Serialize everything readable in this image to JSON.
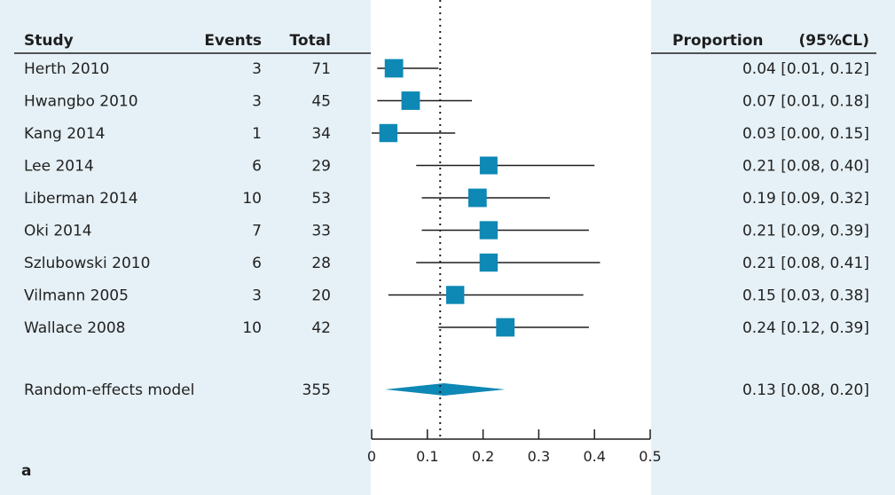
{
  "panel_label": "a",
  "chart_data": {
    "type": "forest",
    "columns": {
      "study": "Study",
      "events": "Events",
      "total": "Total",
      "proportion": "Proportion",
      "ci": "(95%CL)"
    },
    "studies": [
      {
        "study": "Herth 2010",
        "events": "3",
        "total": "71",
        "prop": 0.04,
        "lo": 0.01,
        "hi": 0.12,
        "ci_text": "0.04 [0.01, 0.12]",
        "weight": 0.85
      },
      {
        "study": "Hwangbo 2010",
        "events": "3",
        "total": "45",
        "prop": 0.07,
        "lo": 0.01,
        "hi": 0.18,
        "ci_text": "0.07 [0.01, 0.18]",
        "weight": 0.85
      },
      {
        "study": "Kang 2014",
        "events": "1",
        "total": "34",
        "prop": 0.03,
        "lo": 0.0,
        "hi": 0.15,
        "ci_text": "0.03 [0.00, 0.15]",
        "weight": 0.8
      },
      {
        "study": "Lee 2014",
        "events": "6",
        "total": "29",
        "prop": 0.21,
        "lo": 0.08,
        "hi": 0.4,
        "ci_text": "0.21 [0.08, 0.40]",
        "weight": 0.75
      },
      {
        "study": "Liberman 2014",
        "events": "10",
        "total": "53",
        "prop": 0.19,
        "lo": 0.09,
        "hi": 0.32,
        "ci_text": "0.19 [0.09, 0.32]",
        "weight": 0.85
      },
      {
        "study": "Oki 2014",
        "events": "7",
        "total": "33",
        "prop": 0.21,
        "lo": 0.09,
        "hi": 0.39,
        "ci_text": "0.21 [0.09, 0.39]",
        "weight": 0.8
      },
      {
        "study": "Szlubowski 2010",
        "events": "6",
        "total": "28",
        "prop": 0.21,
        "lo": 0.08,
        "hi": 0.41,
        "ci_text": "0.21 [0.08, 0.41]",
        "weight": 0.8
      },
      {
        "study": "Vilmann 2005",
        "events": "3",
        "total": "20",
        "prop": 0.15,
        "lo": 0.03,
        "hi": 0.38,
        "ci_text": "0.15 [0.03, 0.38]",
        "weight": 0.8
      },
      {
        "study": "Wallace 2008",
        "events": "10",
        "total": "42",
        "prop": 0.24,
        "lo": 0.12,
        "hi": 0.39,
        "ci_text": "0.24 [0.12, 0.39]",
        "weight": 0.85
      }
    ],
    "summary": {
      "label": "Random-effects model",
      "total": "355",
      "prop": 0.13,
      "lo": 0.08,
      "hi": 0.2,
      "ci_text": "0.13 [0.08, 0.20]"
    },
    "reference_line": 0.123,
    "xlim": [
      0,
      0.5
    ],
    "xticks": [
      0,
      0.1,
      0.2,
      0.3,
      0.4,
      0.5
    ],
    "xtick_labels": [
      "0",
      "0.1",
      "0.2",
      "0.3",
      "0.4",
      "0.5"
    ],
    "colors": {
      "marker": "#0e88b5",
      "background": "#e6f1f7",
      "plot_area": "#ffffff",
      "line": "#1e1e1e"
    }
  }
}
